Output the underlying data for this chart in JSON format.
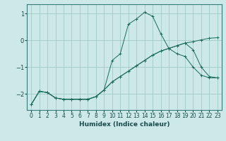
{
  "xlabel": "Humidex (Indice chaleur)",
  "bg_color": "#cce8e8",
  "grid_color": "#a0c8c8",
  "line_color": "#1a6a5a",
  "xlim": [
    -0.5,
    23.5
  ],
  "ylim": [
    -2.6,
    1.35
  ],
  "yticks": [
    -2,
    -1,
    0,
    1
  ],
  "xticks": [
    0,
    1,
    2,
    3,
    4,
    5,
    6,
    7,
    8,
    9,
    10,
    11,
    12,
    13,
    14,
    15,
    16,
    17,
    18,
    19,
    20,
    21,
    22,
    23
  ],
  "line1_x": [
    0,
    1,
    2,
    3,
    4,
    5,
    6,
    7,
    8,
    9,
    10,
    11,
    12,
    13,
    14,
    15,
    16,
    17,
    18,
    19,
    20,
    21,
    22,
    23
  ],
  "line1_y": [
    -2.4,
    -1.9,
    -1.95,
    -2.15,
    -2.2,
    -2.2,
    -2.2,
    -2.2,
    -2.1,
    -1.85,
    -0.75,
    -0.5,
    0.6,
    0.8,
    1.05,
    0.9,
    0.25,
    -0.3,
    -0.5,
    -0.6,
    -1.0,
    -1.3,
    -1.4,
    -1.4
  ],
  "line2_x": [
    0,
    1,
    2,
    3,
    4,
    5,
    6,
    7,
    8,
    9,
    10,
    11,
    12,
    13,
    14,
    15,
    16,
    17,
    18,
    19,
    20,
    21,
    22,
    23
  ],
  "line2_y": [
    -2.4,
    -1.9,
    -1.95,
    -2.15,
    -2.2,
    -2.2,
    -2.2,
    -2.2,
    -2.1,
    -1.85,
    -1.55,
    -1.35,
    -1.15,
    -0.95,
    -0.75,
    -0.55,
    -0.4,
    -0.3,
    -0.2,
    -0.1,
    -0.05,
    0.02,
    0.08,
    0.1
  ],
  "line3_x": [
    0,
    1,
    2,
    3,
    4,
    5,
    6,
    7,
    8,
    9,
    10,
    11,
    12,
    13,
    14,
    15,
    16,
    17,
    18,
    19,
    20,
    21,
    22,
    23
  ],
  "line3_y": [
    -2.4,
    -1.9,
    -1.95,
    -2.15,
    -2.2,
    -2.2,
    -2.2,
    -2.2,
    -2.1,
    -1.85,
    -1.55,
    -1.35,
    -1.15,
    -0.95,
    -0.75,
    -0.55,
    -0.4,
    -0.3,
    -0.2,
    -0.1,
    -0.35,
    -1.0,
    -1.35,
    -1.4
  ]
}
